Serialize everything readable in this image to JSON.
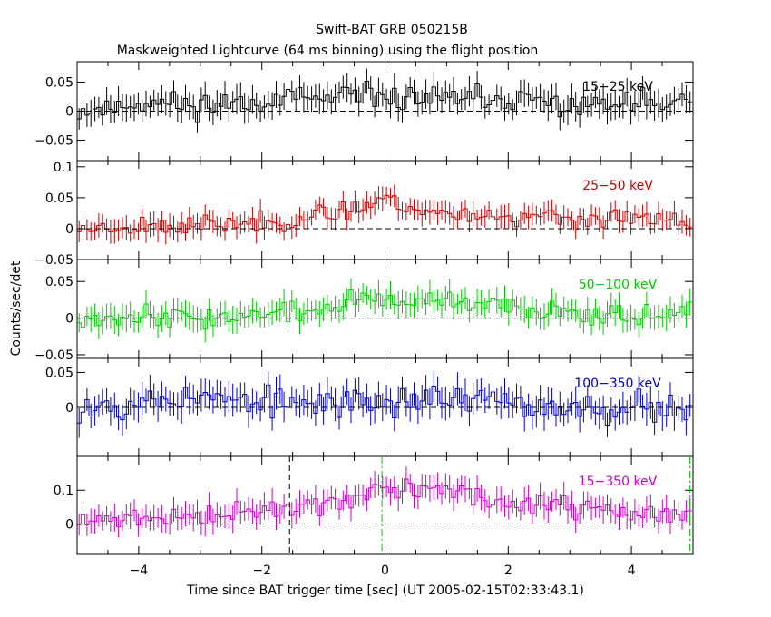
{
  "title": "Swift-BAT GRB 050215B",
  "subtitle": "Maskweighted Lightcurve (64 ms binning) using the flight position",
  "chart_data": {
    "type": "line",
    "xlabel": "Time since BAT trigger time [sec] (UT 2005-02-15T02:33:43.1)",
    "ylabel": "Counts/sec/det",
    "xlim": [
      -5.0,
      5.0
    ],
    "bin_width_s": 0.064,
    "x_ticks": [
      "−4",
      "−2",
      "0",
      "2",
      "4"
    ],
    "x_tick_values": [
      -4,
      -2,
      0,
      2,
      4
    ],
    "markers": {
      "dashed_black_line_x": -1.55,
      "dash_dot_green_lines_x": [
        -0.05,
        4.95
      ]
    },
    "series": [
      {
        "name": "15−25 keV",
        "color": "#000000",
        "ylim": [
          -0.085,
          0.085
        ],
        "ytick_values": [
          -0.05,
          0,
          0.05
        ],
        "ytick_labels": [
          "−0.05",
          "0",
          "0.05"
        ],
        "control_points": [
          [
            -5,
            0.0
          ],
          [
            -4.5,
            0.005
          ],
          [
            -4,
            0.015
          ],
          [
            -3,
            0.01
          ],
          [
            -2,
            0.02
          ],
          [
            -1,
            0.02
          ],
          [
            0,
            0.025
          ],
          [
            1,
            0.02
          ],
          [
            2,
            0.02
          ],
          [
            3,
            0.01
          ],
          [
            4,
            0.01
          ],
          [
            5,
            0.015
          ]
        ],
        "noise": 0.018,
        "err": 0.022,
        "seed": 11
      },
      {
        "name": "25−50 keV",
        "color": "#cc0000",
        "ylim": [
          -0.05,
          0.11
        ],
        "ytick_values": [
          -0.05,
          0,
          0.05,
          0.1
        ],
        "ytick_labels": [
          "−0.05",
          "0",
          "0.05",
          "0.1"
        ],
        "control_points": [
          [
            -5,
            0.0
          ],
          [
            -4,
            0.005
          ],
          [
            -3,
            0.005
          ],
          [
            -2,
            0.01
          ],
          [
            -1,
            0.02
          ],
          [
            -0.3,
            0.04
          ],
          [
            0,
            0.05
          ],
          [
            0.5,
            0.03
          ],
          [
            1,
            0.025
          ],
          [
            2,
            0.02
          ],
          [
            3,
            0.015
          ],
          [
            4,
            0.015
          ],
          [
            5,
            0.01
          ]
        ],
        "noise": 0.013,
        "err": 0.017,
        "seed": 23
      },
      {
        "name": "50−100 keV",
        "color": "#00cc00",
        "ylim": [
          -0.055,
          0.08
        ],
        "ytick_values": [
          -0.05,
          0,
          0.05
        ],
        "ytick_labels": [
          "−0.05",
          "0",
          "0.05"
        ],
        "control_points": [
          [
            -5,
            0.0
          ],
          [
            -4,
            0.005
          ],
          [
            -3,
            0.0
          ],
          [
            -2,
            0.005
          ],
          [
            -1,
            0.01
          ],
          [
            -0.5,
            0.025
          ],
          [
            0,
            0.025
          ],
          [
            1,
            0.02
          ],
          [
            2,
            0.015
          ],
          [
            3,
            0.01
          ],
          [
            4,
            0.005
          ],
          [
            5,
            0.005
          ]
        ],
        "noise": 0.012,
        "err": 0.016,
        "seed": 37
      },
      {
        "name": "100−350 keV",
        "color": "#0000cc",
        "ylim": [
          -0.07,
          0.07
        ],
        "ytick_values": [
          0,
          0.05
        ],
        "ytick_labels": [
          "0",
          "0.05"
        ],
        "control_points": [
          [
            -5,
            0.0
          ],
          [
            -4,
            0.01
          ],
          [
            -3,
            0.015
          ],
          [
            -2,
            0.005
          ],
          [
            -1,
            0.005
          ],
          [
            0,
            0.01
          ],
          [
            1,
            0.015
          ],
          [
            2,
            0.005
          ],
          [
            3,
            0.0
          ],
          [
            4,
            0.0
          ],
          [
            5,
            0.0
          ]
        ],
        "noise": 0.018,
        "err": 0.02,
        "seed": 53
      },
      {
        "name": "15−350 keV",
        "color": "#cc00cc",
        "ylim": [
          -0.09,
          0.2
        ],
        "ytick_values": [
          0,
          0.1
        ],
        "ytick_labels": [
          "0",
          "0.1"
        ],
        "control_points": [
          [
            -5,
            0.0
          ],
          [
            -4,
            0.02
          ],
          [
            -3,
            0.02
          ],
          [
            -2,
            0.04
          ],
          [
            -1,
            0.06
          ],
          [
            -0.5,
            0.08
          ],
          [
            0,
            0.1
          ],
          [
            0.5,
            0.11
          ],
          [
            1,
            0.1
          ],
          [
            1.5,
            0.08
          ],
          [
            2,
            0.06
          ],
          [
            3,
            0.05
          ],
          [
            4,
            0.03
          ],
          [
            5,
            0.03
          ]
        ],
        "noise": 0.025,
        "err": 0.035,
        "seed": 71
      }
    ]
  }
}
